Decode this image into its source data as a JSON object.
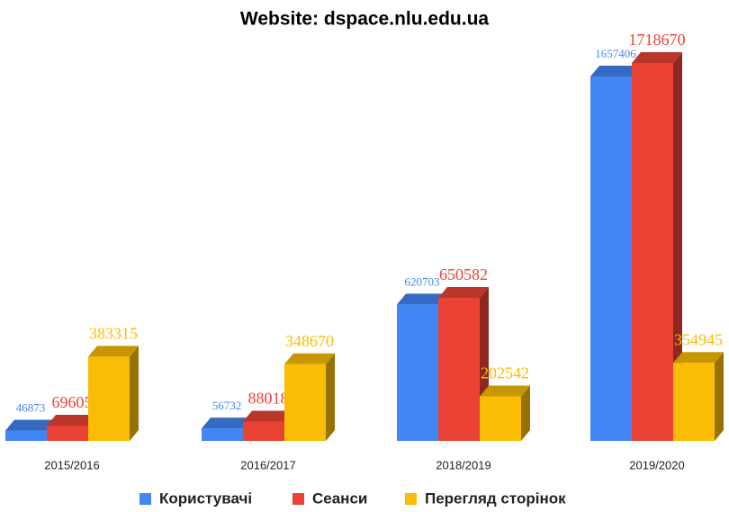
{
  "chart_data": {
    "type": "bar3d",
    "title": "Website: dspace.nlu.edu.ua",
    "categories": [
      "2015/2016",
      "2016/2017",
      "2018/2019",
      "2019/2020"
    ],
    "series": [
      {
        "name": "Користувачі",
        "color": "#4285f4",
        "values": [
          46873,
          56732,
          620703,
          1657406
        ]
      },
      {
        "name": "Сеанси",
        "color": "#ea4335",
        "values": [
          69605,
          88018,
          650582,
          1718670
        ]
      },
      {
        "name": "Перегляд сторінок",
        "color": "#fbbc04",
        "values": [
          383315,
          348670,
          202542,
          354945
        ]
      }
    ],
    "legend": "bottom"
  }
}
